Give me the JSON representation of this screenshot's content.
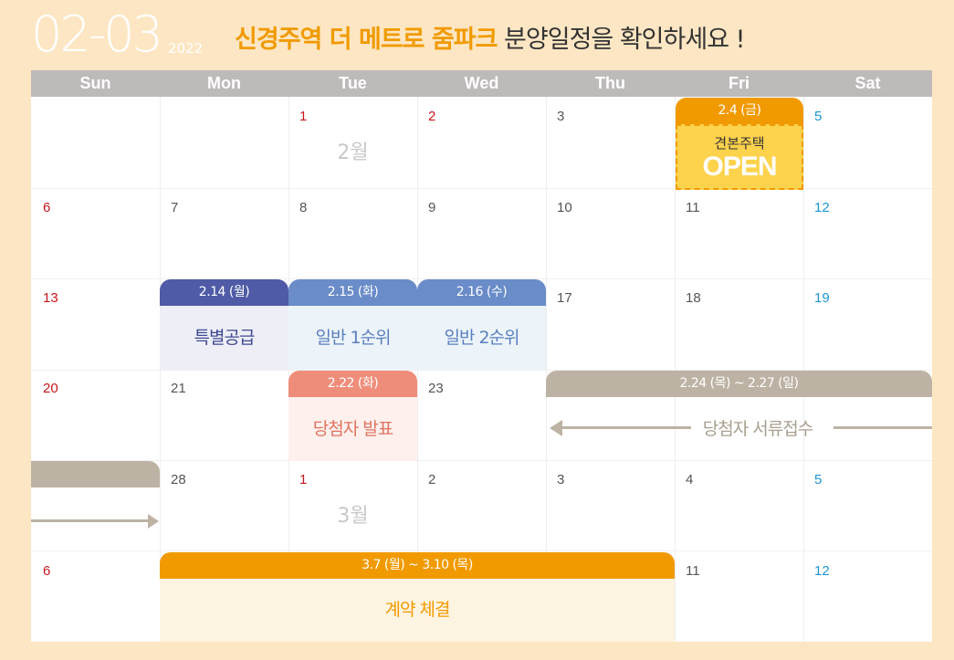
{
  "header": {
    "date_range": "02-03",
    "year": "2022",
    "title_accent": "신경주역 더 메트로 줌파크",
    "title_rest": "분양일정을 확인하세요 !"
  },
  "weekdays": [
    "Sun",
    "Mon",
    "Tue",
    "Wed",
    "Thu",
    "Fri",
    "Sat"
  ],
  "days": {
    "w1": [
      "",
      "",
      "1",
      "2",
      "3",
      "",
      "5"
    ],
    "w2": [
      "6",
      "7",
      "8",
      "9",
      "10",
      "11",
      "12"
    ],
    "w3": [
      "13",
      "",
      "",
      "",
      "17",
      "18",
      "19"
    ],
    "w4": [
      "20",
      "21",
      "",
      "23",
      "",
      "",
      ""
    ],
    "w5": [
      "",
      "28",
      "1",
      "2",
      "3",
      "4",
      "5"
    ],
    "w6": [
      "6",
      "",
      "",
      "",
      "",
      "11",
      "12"
    ]
  },
  "month_labels": {
    "feb": "2월",
    "mar": "3월"
  },
  "events": {
    "model_house": {
      "date": "2.4 (금)",
      "label": "견본주택",
      "sub": "OPEN"
    },
    "special_supply": {
      "date": "2.14 (월)",
      "label": "특별공급"
    },
    "general_1st": {
      "date": "2.15 (화)",
      "label": "일반 1순위"
    },
    "general_2nd": {
      "date": "2.16 (수)",
      "label": "일반 2순위"
    },
    "winner_announce": {
      "date": "2.22 (화)",
      "label": "당첨자 발표"
    },
    "document_review": {
      "date": "2.24 (목) ~ 2.27 (일)",
      "label": "당첨자 서류접수"
    },
    "contract": {
      "date": "3.7 (월) ~ 3.10 (목)",
      "label": "계약 체결"
    }
  },
  "colors": {
    "orange": "#f19a00",
    "indigo": "#4f5ba6",
    "blue": "#6a8cc8",
    "salmon": "#ef8d7b",
    "taupe": "#bdb3a4",
    "sun_red": "#c8161d",
    "sat_blue": "#1a96d4"
  }
}
